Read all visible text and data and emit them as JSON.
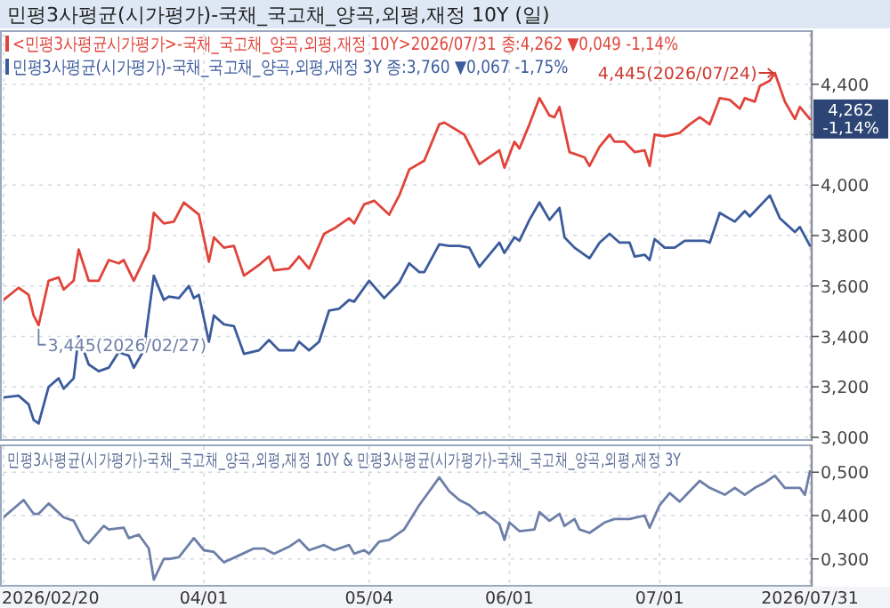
{
  "chart_data": [
    {
      "type": "line",
      "title": "민평3사평균(시가평가)-국채_국고채_양곡,외평,재정 10Y (일)",
      "legend": "top left",
      "grid": true,
      "tick_labels": "y",
      "xlim": [
        "2026-02-20",
        "2026-07-31"
      ],
      "xticks": [
        {
          "value": "2026-02-20",
          "label": null
        },
        {
          "value": "2026-04-01",
          "label": null
        },
        {
          "value": "2026-05-04",
          "label": null
        },
        {
          "value": "2026-06-01",
          "label": null
        },
        {
          "value": "2026-07-01",
          "label": null
        },
        {
          "value": "2026-07-31",
          "label": null
        }
      ],
      "ylim": [
        3.0,
        4.6
      ],
      "yticks": [
        {
          "value": 3.0,
          "label": "3,000"
        },
        {
          "value": 3.2,
          "label": "3,200"
        },
        {
          "value": 3.4,
          "label": "3,400"
        },
        {
          "value": 3.6,
          "label": "3,600"
        },
        {
          "value": 3.8,
          "label": "3,800"
        },
        {
          "value": 4.0,
          "label": "4,000"
        },
        {
          "value": 4.2,
          "label": null
        },
        {
          "value": 4.4,
          "label": "4,400"
        }
      ],
      "annotations": [
        {
          "text": "4,445(2026/07/24)",
          "x": "2026-07-24",
          "y": 4.445
        },
        {
          "text": "3,445(2026/02/27)",
          "x": "2026-02-27",
          "y": 3.445
        },
        {
          "text": "4,262 -1,14%",
          "x": "2026-07-31",
          "y": 4.262
        }
      ],
      "series": [
        {
          "name": "<민평3사평균시가평가>-국채_국고채_양곡,외평,재정 10Y>2026/07/31 종:4,262 ▼0,049 -1,14%",
          "color": "#e0443a",
          "x": [
            "2026-02-20",
            "2026-02-23",
            "2026-02-25",
            "2026-02-26",
            "2026-02-27",
            "2026-03-01",
            "2026-03-03",
            "2026-03-04",
            "2026-03-06",
            "2026-03-07",
            "2026-03-09",
            "2026-03-11",
            "2026-03-13",
            "2026-03-15",
            "2026-03-16",
            "2026-03-18",
            "2026-03-21",
            "2026-03-22",
            "2026-03-24",
            "2026-03-26",
            "2026-03-28",
            "2026-03-31",
            "2026-04-02",
            "2026-04-03",
            "2026-04-05",
            "2026-04-07",
            "2026-04-09",
            "2026-04-12",
            "2026-04-14",
            "2026-04-15",
            "2026-04-18",
            "2026-04-20",
            "2026-04-22",
            "2026-04-25",
            "2026-04-27",
            "2026-04-30",
            "2026-05-01",
            "2026-05-03",
            "2026-05-05",
            "2026-05-08",
            "2026-05-10",
            "2026-05-12",
            "2026-05-15",
            "2026-05-18",
            "2026-05-19",
            "2026-05-23",
            "2026-05-26",
            "2026-05-30",
            "2026-05-31",
            "2026-06-02",
            "2026-06-03",
            "2026-06-05",
            "2026-06-07",
            "2026-06-09",
            "2026-06-10",
            "2026-06-11",
            "2026-06-13",
            "2026-06-16",
            "2026-06-17",
            "2026-06-19",
            "2026-06-21",
            "2026-06-22",
            "2026-06-24",
            "2026-06-26",
            "2026-06-28",
            "2026-06-29",
            "2026-06-30",
            "2026-07-02",
            "2026-07-05",
            "2026-07-07",
            "2026-07-09",
            "2026-07-11",
            "2026-07-13",
            "2026-07-15",
            "2026-07-17",
            "2026-07-18",
            "2026-07-20",
            "2026-07-21",
            "2026-07-23",
            "2026-07-24",
            "2026-07-26",
            "2026-07-28",
            "2026-07-29",
            "2026-07-31"
          ],
          "values": [
            3.545,
            3.593,
            3.565,
            3.483,
            3.445,
            3.621,
            3.634,
            3.586,
            3.621,
            3.745,
            3.621,
            3.621,
            3.703,
            3.69,
            3.703,
            3.621,
            3.745,
            3.89,
            3.848,
            3.855,
            3.931,
            3.883,
            3.696,
            3.793,
            3.752,
            3.759,
            3.641,
            3.683,
            3.717,
            3.662,
            3.669,
            3.717,
            3.669,
            3.807,
            3.828,
            3.869,
            3.848,
            3.924,
            3.938,
            3.883,
            3.959,
            4.062,
            4.097,
            4.241,
            4.248,
            4.2,
            4.083,
            4.138,
            4.069,
            4.172,
            4.145,
            4.241,
            4.345,
            4.276,
            4.269,
            4.31,
            4.131,
            4.11,
            4.076,
            4.152,
            4.2,
            4.172,
            4.172,
            4.131,
            4.138,
            4.076,
            4.2,
            4.193,
            4.207,
            4.241,
            4.269,
            4.241,
            4.345,
            4.338,
            4.303,
            4.345,
            4.331,
            4.393,
            4.414,
            4.445,
            4.331,
            4.262,
            4.31,
            4.262
          ]
        },
        {
          "name": "민평3사평균(시가평가)-국채_국고채_양곡,외평,재정 3Y 종:3,760 ▼0,067 -1,75%",
          "color": "#3b5b9c",
          "x": [
            "2026-02-20",
            "2026-02-23",
            "2026-02-25",
            "2026-02-26",
            "2026-02-27",
            "2026-03-01",
            "2026-03-03",
            "2026-03-04",
            "2026-03-06",
            "2026-03-07",
            "2026-03-09",
            "2026-03-11",
            "2026-03-13",
            "2026-03-15",
            "2026-03-17",
            "2026-03-18",
            "2026-03-20",
            "2026-03-22",
            "2026-03-24",
            "2026-03-25",
            "2026-03-27",
            "2026-03-29",
            "2026-03-30",
            "2026-03-31",
            "2026-04-02",
            "2026-04-03",
            "2026-04-05",
            "2026-04-07",
            "2026-04-09",
            "2026-04-12",
            "2026-04-14",
            "2026-04-16",
            "2026-04-19",
            "2026-04-20",
            "2026-04-22",
            "2026-04-24",
            "2026-04-26",
            "2026-04-28",
            "2026-04-30",
            "2026-05-01",
            "2026-05-04",
            "2026-05-07",
            "2026-05-10",
            "2026-05-12",
            "2026-05-14",
            "2026-05-15",
            "2026-05-18",
            "2026-05-20",
            "2026-05-22",
            "2026-05-24",
            "2026-05-26",
            "2026-05-30",
            "2026-05-31",
            "2026-06-02",
            "2026-06-03",
            "2026-06-05",
            "2026-06-07",
            "2026-06-09",
            "2026-06-11",
            "2026-06-12",
            "2026-06-14",
            "2026-06-17",
            "2026-06-19",
            "2026-06-21",
            "2026-06-23",
            "2026-06-25",
            "2026-06-26",
            "2026-06-28",
            "2026-06-29",
            "2026-06-30",
            "2026-07-02",
            "2026-07-04",
            "2026-07-06",
            "2026-07-10",
            "2026-07-11",
            "2026-07-13",
            "2026-07-16",
            "2026-07-18",
            "2026-07-19",
            "2026-07-21",
            "2026-07-23",
            "2026-07-25",
            "2026-07-28",
            "2026-07-29",
            "2026-07-31"
          ],
          "values": [
            3.158,
            3.165,
            3.131,
            3.069,
            3.055,
            3.2,
            3.234,
            3.193,
            3.234,
            3.4,
            3.289,
            3.262,
            3.276,
            3.338,
            3.324,
            3.276,
            3.345,
            3.641,
            3.545,
            3.558,
            3.552,
            3.6,
            3.552,
            3.565,
            3.379,
            3.483,
            3.448,
            3.441,
            3.331,
            3.345,
            3.386,
            3.345,
            3.345,
            3.379,
            3.345,
            3.379,
            3.503,
            3.51,
            3.545,
            3.538,
            3.621,
            3.552,
            3.614,
            3.69,
            3.655,
            3.655,
            3.765,
            3.759,
            3.759,
            3.752,
            3.676,
            3.772,
            3.731,
            3.793,
            3.779,
            3.862,
            3.931,
            3.862,
            3.91,
            3.793,
            3.752,
            3.71,
            3.772,
            3.807,
            3.772,
            3.772,
            3.717,
            3.724,
            3.703,
            3.786,
            3.752,
            3.752,
            3.779,
            3.779,
            3.772,
            3.89,
            3.855,
            3.897,
            3.876,
            3.917,
            3.959,
            3.869,
            3.814,
            3.834,
            3.76
          ]
        }
      ]
    },
    {
      "type": "line",
      "title": "민평3사평균(시가평가)-국채_국고채_양곡,외평,재정 10Y & 민평3사평균(시가평가)-국채_국고채_양곡,외평,재정 3Y",
      "grid": true,
      "xlim": [
        "2026-02-20",
        "2026-07-31"
      ],
      "xticks": [
        {
          "value": "2026-02-20",
          "label": "2026/02/20"
        },
        {
          "value": "2026-04-01",
          "label": "04/01"
        },
        {
          "value": "2026-05-04",
          "label": "05/04"
        },
        {
          "value": "2026-06-01",
          "label": "06/01"
        },
        {
          "value": "2026-07-01",
          "label": "07/01"
        },
        {
          "value": "2026-07-31",
          "label": "2026/07/31"
        }
      ],
      "ylim": [
        0.24,
        0.56
      ],
      "yticks": [
        {
          "value": 0.3,
          "label": "0,300"
        },
        {
          "value": 0.4,
          "label": "0,400"
        },
        {
          "value": 0.5,
          "label": "0,500"
        }
      ],
      "series": [
        {
          "color": "#6d7fa8",
          "x": [
            "2026-02-20",
            "2026-02-24",
            "2026-02-26",
            "2026-02-27",
            "2026-03-01",
            "2026-03-04",
            "2026-03-06",
            "2026-03-08",
            "2026-03-09",
            "2026-03-12",
            "2026-03-13",
            "2026-03-16",
            "2026-03-17",
            "2026-03-19",
            "2026-03-21",
            "2026-03-22",
            "2026-03-24",
            "2026-03-25",
            "2026-03-27",
            "2026-03-30",
            "2026-04-01",
            "2026-04-03",
            "2026-04-05",
            "2026-04-08",
            "2026-04-11",
            "2026-04-13",
            "2026-04-15",
            "2026-04-18",
            "2026-04-20",
            "2026-04-22",
            "2026-04-25",
            "2026-04-27",
            "2026-04-30",
            "2026-05-01",
            "2026-05-03",
            "2026-05-04",
            "2026-05-06",
            "2026-05-08",
            "2026-05-11",
            "2026-05-14",
            "2026-05-16",
            "2026-05-18",
            "2026-05-20",
            "2026-05-22",
            "2026-05-24",
            "2026-05-26",
            "2026-05-27",
            "2026-05-30",
            "2026-05-31",
            "2026-06-01",
            "2026-06-03",
            "2026-06-06",
            "2026-06-07",
            "2026-06-09",
            "2026-06-11",
            "2026-06-12",
            "2026-06-14",
            "2026-06-15",
            "2026-06-17",
            "2026-06-20",
            "2026-06-22",
            "2026-06-25",
            "2026-06-28",
            "2026-06-29",
            "2026-07-01",
            "2026-07-03",
            "2026-07-05",
            "2026-07-06",
            "2026-07-09",
            "2026-07-11",
            "2026-07-14",
            "2026-07-16",
            "2026-07-18",
            "2026-07-20",
            "2026-07-22",
            "2026-07-24",
            "2026-07-26",
            "2026-07-29",
            "2026-07-30",
            "2026-07-31"
          ],
          "values": [
            0.396,
            0.436,
            0.404,
            0.404,
            0.428,
            0.396,
            0.388,
            0.344,
            0.336,
            0.376,
            0.368,
            0.372,
            0.348,
            0.356,
            0.324,
            0.252,
            0.3,
            0.3,
            0.304,
            0.348,
            0.32,
            0.316,
            0.292,
            0.308,
            0.324,
            0.324,
            0.312,
            0.328,
            0.344,
            0.32,
            0.332,
            0.32,
            0.332,
            0.312,
            0.32,
            0.312,
            0.34,
            0.344,
            0.368,
            0.424,
            0.456,
            0.488,
            0.456,
            0.436,
            0.424,
            0.404,
            0.408,
            0.38,
            0.344,
            0.384,
            0.364,
            0.368,
            0.408,
            0.388,
            0.404,
            0.376,
            0.392,
            0.368,
            0.36,
            0.384,
            0.392,
            0.392,
            0.4,
            0.372,
            0.424,
            0.452,
            0.432,
            0.444,
            0.48,
            0.464,
            0.448,
            0.464,
            0.448,
            0.464,
            0.476,
            0.492,
            0.464,
            0.464,
            0.448,
            0.502
          ]
        }
      ]
    }
  ]
}
